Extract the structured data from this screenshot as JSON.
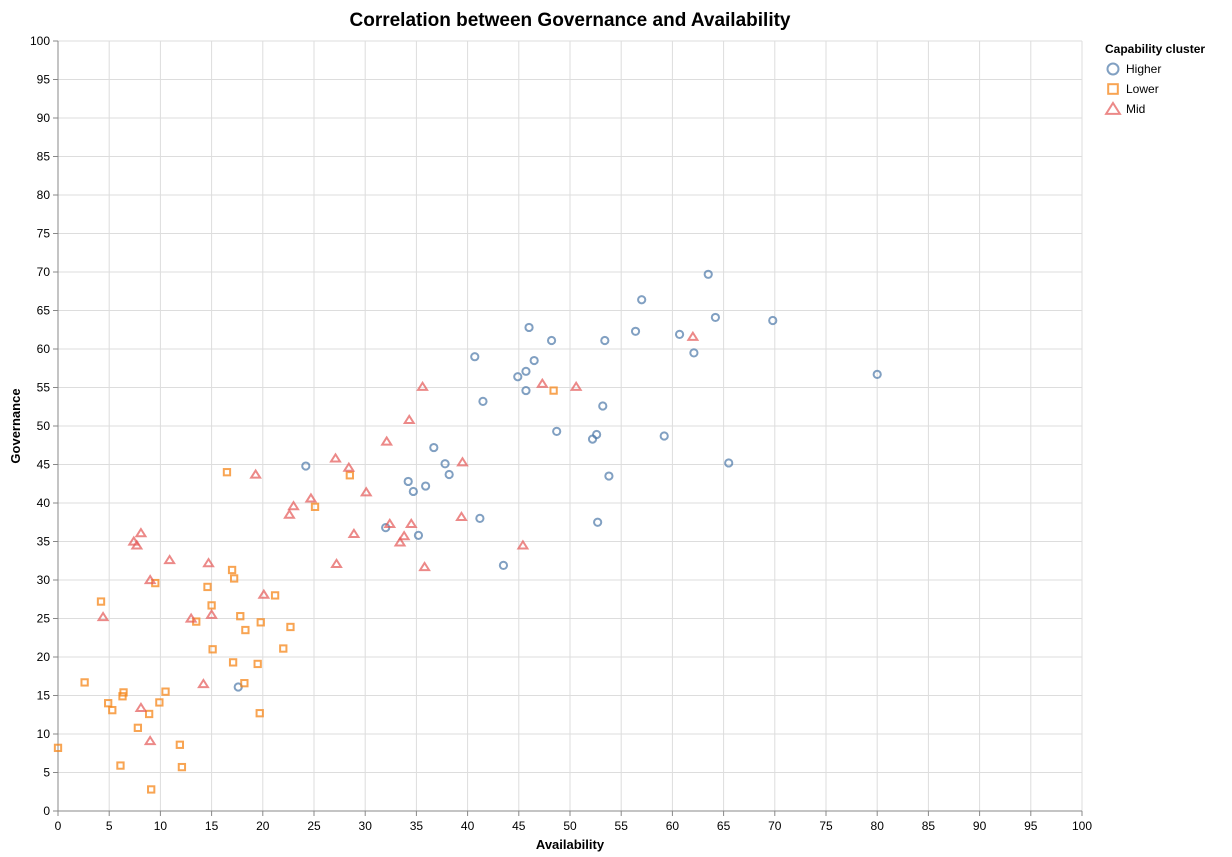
{
  "chart_data": {
    "type": "scatter",
    "title": "Correlation between Governance and Availability",
    "xlabel": "Availability",
    "ylabel": "Governance",
    "xlim": [
      0,
      100
    ],
    "ylim": [
      0,
      100
    ],
    "xticks": [
      0,
      5,
      10,
      15,
      20,
      25,
      30,
      35,
      40,
      45,
      50,
      55,
      60,
      65,
      70,
      75,
      80,
      85,
      90,
      95,
      100
    ],
    "yticks": [
      0,
      5,
      10,
      15,
      20,
      25,
      30,
      35,
      40,
      45,
      50,
      55,
      60,
      65,
      70,
      75,
      80,
      85,
      90,
      95,
      100
    ],
    "grid": true,
    "legend": {
      "title": "Capability cluster",
      "placement": "top-right"
    },
    "series": [
      {
        "name": "Higher",
        "shape": "circle",
        "color": "#4c78a8",
        "points": [
          [
            24.2,
            44.8
          ],
          [
            17.6,
            16.1
          ],
          [
            32.0,
            36.8
          ],
          [
            34.2,
            42.8
          ],
          [
            34.7,
            41.5
          ],
          [
            35.9,
            42.2
          ],
          [
            35.2,
            35.8
          ],
          [
            36.7,
            47.2
          ],
          [
            37.8,
            45.1
          ],
          [
            38.2,
            43.7
          ],
          [
            40.7,
            59.0
          ],
          [
            41.2,
            38.0
          ],
          [
            41.5,
            53.2
          ],
          [
            43.5,
            31.9
          ],
          [
            44.9,
            56.4
          ],
          [
            45.7,
            57.1
          ],
          [
            45.7,
            54.6
          ],
          [
            46.0,
            62.8
          ],
          [
            46.5,
            58.5
          ],
          [
            48.2,
            61.1
          ],
          [
            48.7,
            49.3
          ],
          [
            52.2,
            48.3
          ],
          [
            52.6,
            48.9
          ],
          [
            52.7,
            37.5
          ],
          [
            53.2,
            52.6
          ],
          [
            53.4,
            61.1
          ],
          [
            53.8,
            43.5
          ],
          [
            56.4,
            62.3
          ],
          [
            57.0,
            66.4
          ],
          [
            59.2,
            48.7
          ],
          [
            60.7,
            61.9
          ],
          [
            62.1,
            59.5
          ],
          [
            63.5,
            69.7
          ],
          [
            64.2,
            64.1
          ],
          [
            65.5,
            45.2
          ],
          [
            69.8,
            63.7
          ],
          [
            80.0,
            56.7
          ]
        ]
      },
      {
        "name": "Lower",
        "shape": "square",
        "color": "#f58518",
        "points": [
          [
            0.0,
            8.2
          ],
          [
            2.6,
            16.7
          ],
          [
            4.2,
            27.2
          ],
          [
            4.9,
            14.0
          ],
          [
            5.3,
            13.1
          ],
          [
            6.1,
            5.9
          ],
          [
            6.3,
            14.9
          ],
          [
            6.4,
            15.4
          ],
          [
            7.8,
            10.8
          ],
          [
            8.9,
            12.6
          ],
          [
            9.1,
            2.8
          ],
          [
            9.5,
            29.6
          ],
          [
            9.9,
            14.1
          ],
          [
            10.5,
            15.5
          ],
          [
            11.9,
            8.6
          ],
          [
            12.1,
            5.7
          ],
          [
            13.5,
            24.6
          ],
          [
            14.6,
            29.1
          ],
          [
            15.0,
            26.7
          ],
          [
            15.1,
            21.0
          ],
          [
            16.5,
            44.0
          ],
          [
            17.0,
            31.3
          ],
          [
            17.1,
            19.3
          ],
          [
            17.2,
            30.2
          ],
          [
            17.8,
            25.3
          ],
          [
            18.2,
            16.6
          ],
          [
            18.3,
            23.5
          ],
          [
            19.5,
            19.1
          ],
          [
            19.7,
            12.7
          ],
          [
            19.8,
            24.5
          ],
          [
            21.2,
            28.0
          ],
          [
            22.0,
            21.1
          ],
          [
            22.7,
            23.9
          ],
          [
            25.1,
            39.5
          ],
          [
            28.5,
            43.6
          ],
          [
            48.4,
            54.6
          ]
        ]
      },
      {
        "name": "Mid",
        "shape": "triangle",
        "color": "#e45756",
        "points": [
          [
            4.4,
            25.2
          ],
          [
            7.4,
            35.0
          ],
          [
            7.7,
            34.5
          ],
          [
            8.1,
            36.1
          ],
          [
            8.1,
            13.4
          ],
          [
            9.0,
            30.0
          ],
          [
            9.0,
            9.1
          ],
          [
            10.9,
            32.6
          ],
          [
            13.0,
            25.0
          ],
          [
            14.2,
            16.5
          ],
          [
            14.7,
            32.2
          ],
          [
            15.0,
            25.5
          ],
          [
            19.3,
            43.7
          ],
          [
            20.1,
            28.1
          ],
          [
            22.6,
            38.5
          ],
          [
            23.0,
            39.6
          ],
          [
            24.7,
            40.6
          ],
          [
            27.1,
            45.8
          ],
          [
            27.2,
            32.1
          ],
          [
            28.4,
            44.6
          ],
          [
            28.9,
            36.0
          ],
          [
            30.1,
            41.4
          ],
          [
            32.1,
            48.0
          ],
          [
            32.4,
            37.3
          ],
          [
            33.4,
            34.9
          ],
          [
            33.8,
            35.7
          ],
          [
            34.3,
            50.8
          ],
          [
            34.5,
            37.3
          ],
          [
            35.6,
            55.1
          ],
          [
            35.8,
            31.7
          ],
          [
            39.4,
            38.2
          ],
          [
            39.5,
            45.3
          ],
          [
            45.4,
            34.5
          ],
          [
            47.3,
            55.5
          ],
          [
            50.6,
            55.1
          ],
          [
            62.0,
            61.6
          ]
        ]
      }
    ]
  }
}
